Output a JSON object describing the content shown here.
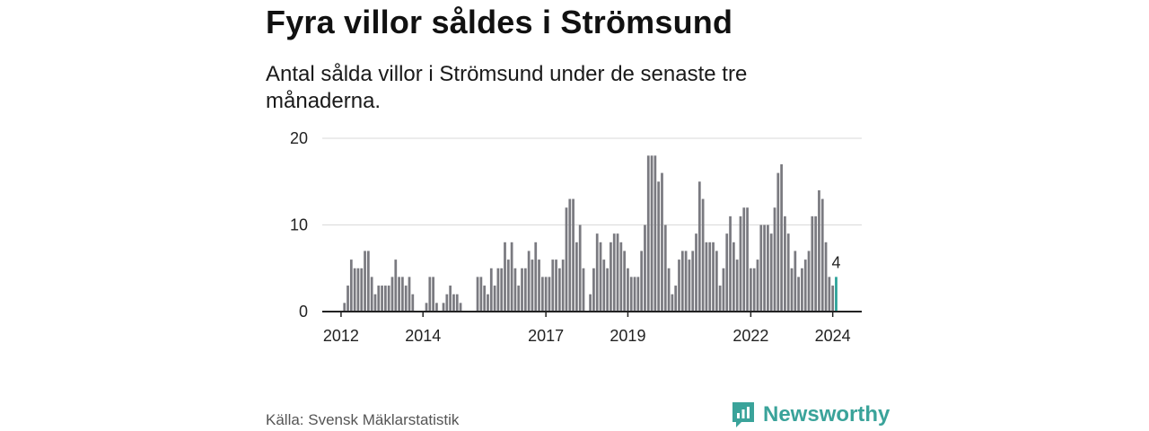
{
  "title": "Fyra villor såldes i Strömsund",
  "subtitle": "Antal sålda villor i Strömsund under de senaste tre månaderna.",
  "source": "Källa: Svensk Mäklarstatistik",
  "brand": {
    "name": "Newsworthy",
    "icon": "bar-chart-speech-bubble-icon"
  },
  "colors": {
    "bar": "#7a7a80",
    "highlight": "#2aa198",
    "brand": "#3aa39a",
    "grid": "#d9d9d9",
    "axis": "#222222"
  },
  "chart_data": {
    "type": "bar",
    "title": "Fyra villor såldes i Strömsund",
    "xlabel": "",
    "ylabel": "",
    "ylim": [
      0,
      20
    ],
    "yticks": [
      0,
      10,
      20
    ],
    "xticks": [
      "2012",
      "2014",
      "2017",
      "2019",
      "2022",
      "2024"
    ],
    "x_start": "2011-08",
    "x_end": "2024-09",
    "series": [
      {
        "name": "Antal sålda villor",
        "start": "2012-02",
        "values": [
          1,
          3,
          6,
          5,
          5,
          5,
          7,
          7,
          4,
          2,
          3,
          3,
          3,
          3,
          4,
          6,
          4,
          4,
          3,
          4,
          2,
          0,
          0,
          0,
          1,
          4,
          4,
          1,
          0,
          1,
          2,
          3,
          2,
          2,
          1,
          0,
          0,
          0,
          0,
          4,
          4,
          3,
          2,
          5,
          3,
          5,
          5,
          8,
          6,
          8,
          5,
          3,
          5,
          5,
          7,
          6,
          8,
          6,
          4,
          4,
          4,
          6,
          6,
          5,
          6,
          12,
          13,
          13,
          8,
          10,
          5,
          0,
          2,
          5,
          9,
          8,
          6,
          5,
          8,
          9,
          9,
          8,
          7,
          5,
          4,
          4,
          4,
          7,
          10,
          18,
          18,
          18,
          15,
          16,
          10,
          5,
          2,
          3,
          6,
          7,
          7,
          6,
          7,
          9,
          15,
          13,
          8,
          8,
          8,
          7,
          3,
          5,
          9,
          11,
          8,
          6,
          11,
          12,
          12,
          5,
          5,
          6,
          10,
          10,
          10,
          9,
          12,
          16,
          17,
          11,
          9,
          5,
          7,
          4,
          5,
          6,
          7,
          11,
          11,
          14,
          13,
          8,
          4,
          3,
          4
        ],
        "highlight_last": true,
        "last_label": "4"
      }
    ]
  }
}
